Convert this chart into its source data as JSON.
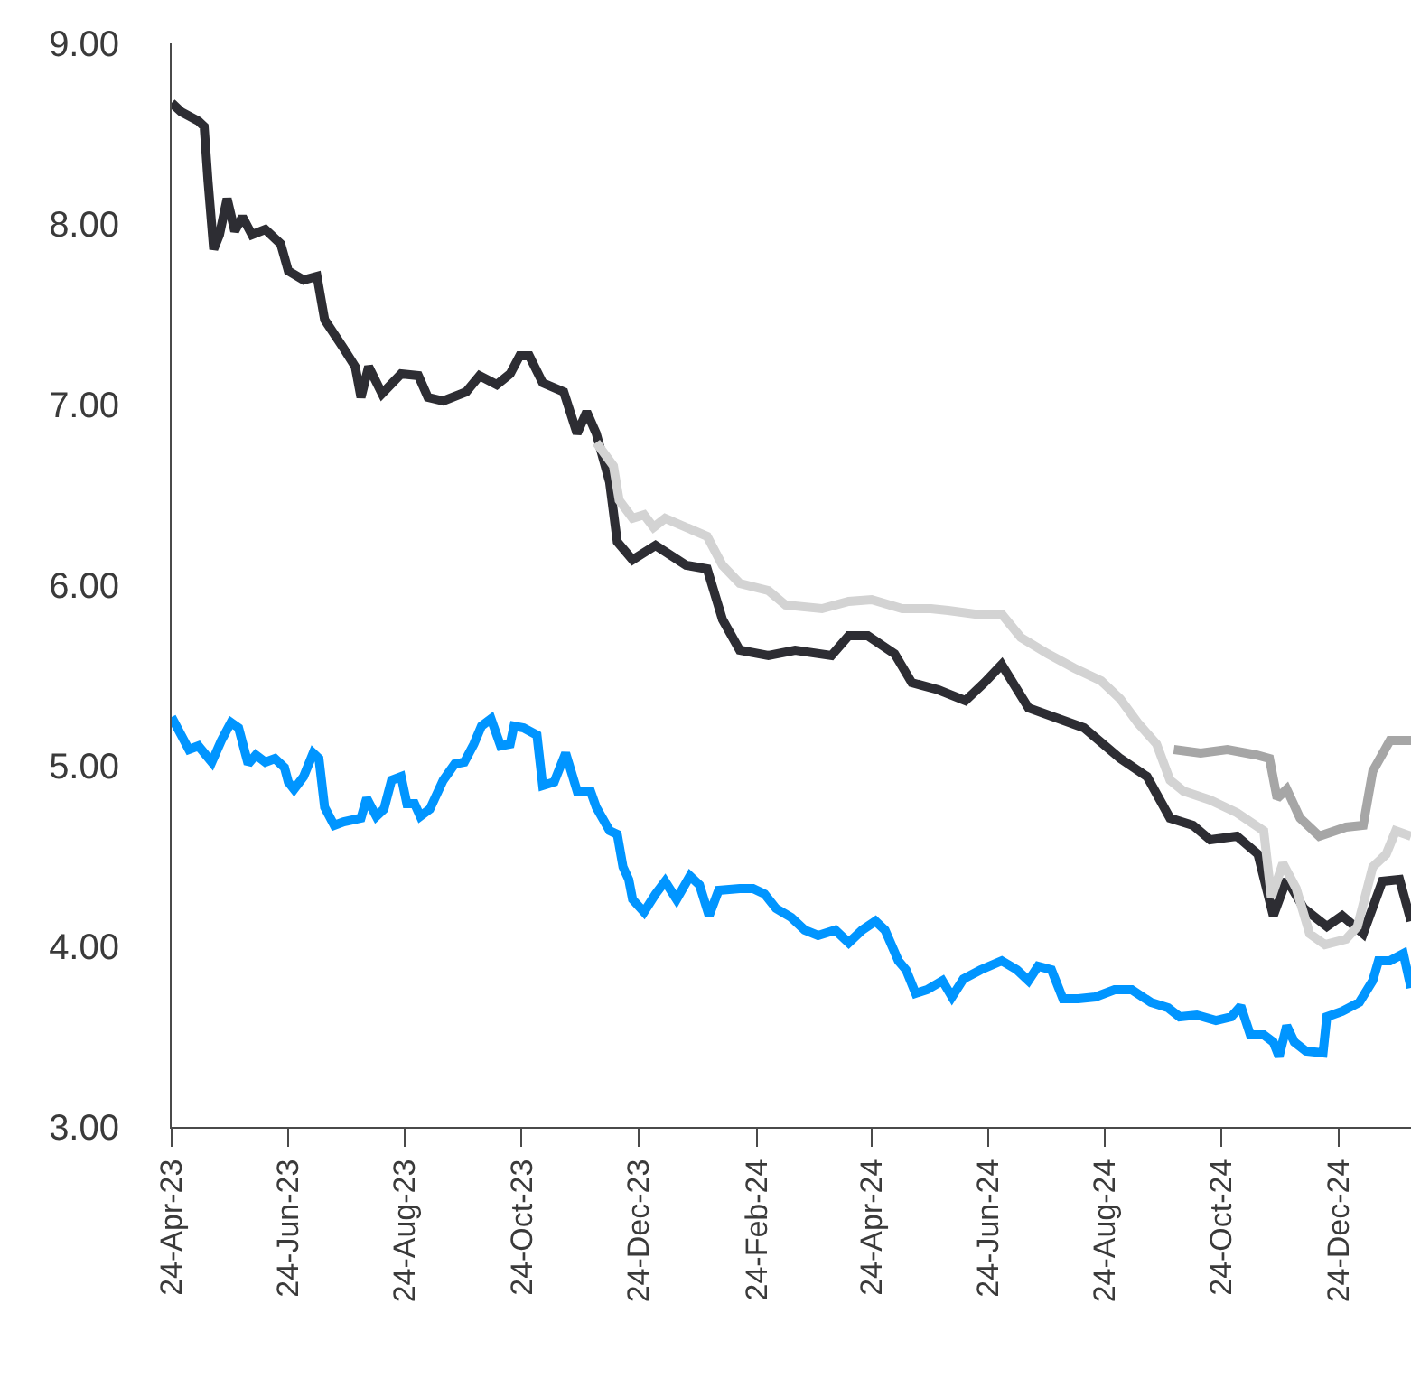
{
  "chart_data": {
    "type": "line",
    "line_style": "solid",
    "marker": "none",
    "xlim": [
      "2023-04-24",
      "2025-01-31"
    ],
    "xticks": [
      {
        "value": "2023-04-24",
        "label": "24-Apr-23"
      },
      {
        "value": "2023-06-24",
        "label": "24-Jun-23"
      },
      {
        "value": "2023-08-24",
        "label": "24-Aug-23"
      },
      {
        "value": "2023-10-24",
        "label": "24-Oct-23"
      },
      {
        "value": "2023-12-24",
        "label": "24-Dec-23"
      },
      {
        "value": "2024-02-24",
        "label": "24-Feb-24"
      },
      {
        "value": "2024-04-24",
        "label": "24-Apr-24"
      },
      {
        "value": "2024-06-24",
        "label": "24-Jun-24"
      },
      {
        "value": "2024-08-24",
        "label": "24-Aug-24"
      },
      {
        "value": "2024-10-24",
        "label": "24-Oct-24"
      },
      {
        "value": "2024-12-24",
        "label": "24-Dec-24"
      }
    ],
    "ylim": [
      3,
      9
    ],
    "yticks": [
      {
        "value": 3,
        "label": "3.00"
      },
      {
        "value": 4,
        "label": "4.00"
      },
      {
        "value": 5,
        "label": "5.00"
      },
      {
        "value": 6,
        "label": "6.00"
      },
      {
        "value": 7,
        "label": "7.00"
      },
      {
        "value": 8,
        "label": "8.00"
      },
      {
        "value": 9,
        "label": "9.00"
      }
    ],
    "series": [
      {
        "color": "#2d2d33",
        "x": [
          "2023-04-24",
          "2023-04-29",
          "2023-05-08",
          "2023-05-11",
          "2023-05-13",
          "2023-05-16",
          "2023-05-19",
          "2023-05-23",
          "2023-05-27",
          "2023-05-31",
          "2023-06-05",
          "2023-06-12",
          "2023-06-20",
          "2023-06-24",
          "2023-07-02",
          "2023-07-09",
          "2023-07-13",
          "2023-07-23",
          "2023-07-29",
          "2023-08-01",
          "2023-08-05",
          "2023-08-12",
          "2023-08-22",
          "2023-08-31",
          "2023-09-05",
          "2023-09-13",
          "2023-09-25",
          "2023-10-02",
          "2023-10-11",
          "2023-10-18",
          "2023-10-23",
          "2023-10-28",
          "2023-11-04",
          "2023-11-15",
          "2023-11-22",
          "2023-11-27",
          "2023-12-02",
          "2023-12-09",
          "2023-12-13",
          "2023-12-21",
          "2024-01-02",
          "2024-01-18",
          "2024-01-29",
          "2024-02-06",
          "2024-02-15",
          "2024-03-01",
          "2024-03-15",
          "2024-04-03",
          "2024-04-12",
          "2024-04-22",
          "2024-05-06",
          "2024-05-15",
          "2024-05-29",
          "2024-06-12",
          "2024-06-22",
          "2024-07-01",
          "2024-07-15",
          "2024-08-13",
          "2024-09-01",
          "2024-09-15",
          "2024-09-27",
          "2024-10-09",
          "2024-10-18",
          "2024-11-01",
          "2024-11-12",
          "2024-11-20",
          "2024-11-27",
          "2024-12-06",
          "2024-12-18",
          "2024-12-26",
          "2025-01-06",
          "2025-01-16",
          "2025-01-25",
          "2025-01-31"
        ],
        "values": [
          8.67,
          8.62,
          8.57,
          8.54,
          8.24,
          7.86,
          7.94,
          8.14,
          7.96,
          8.04,
          7.94,
          7.97,
          7.89,
          7.74,
          7.69,
          7.71,
          7.47,
          7.31,
          7.21,
          7.04,
          7.21,
          7.06,
          7.17,
          7.16,
          7.04,
          7.02,
          7.07,
          7.16,
          7.11,
          7.17,
          7.27,
          7.27,
          7.12,
          7.07,
          6.84,
          6.96,
          6.84,
          6.57,
          6.24,
          6.14,
          6.22,
          6.11,
          6.09,
          5.81,
          5.64,
          5.61,
          5.64,
          5.61,
          5.72,
          5.72,
          5.62,
          5.46,
          5.42,
          5.36,
          5.46,
          5.56,
          5.32,
          5.21,
          5.04,
          4.94,
          4.71,
          4.67,
          4.59,
          4.61,
          4.51,
          4.17,
          4.37,
          4.21,
          4.11,
          4.17,
          4.07,
          4.36,
          4.37,
          4.14
        ]
      },
      {
        "color": "#d3d3d3",
        "x": [
          "2023-12-02",
          "2023-12-11",
          "2023-12-14",
          "2023-12-21",
          "2023-12-27",
          "2024-01-01",
          "2024-01-07",
          "2024-01-18",
          "2024-01-29",
          "2024-02-06",
          "2024-02-15",
          "2024-03-01",
          "2024-03-10",
          "2024-03-29",
          "2024-04-12",
          "2024-04-24",
          "2024-05-10",
          "2024-05-25",
          "2024-06-03",
          "2024-06-17",
          "2024-07-01",
          "2024-07-11",
          "2024-07-25",
          "2024-08-08",
          "2024-08-22",
          "2024-09-01",
          "2024-09-10",
          "2024-09-20",
          "2024-09-27",
          "2024-10-04",
          "2024-10-18",
          "2024-11-01",
          "2024-11-15",
          "2024-11-19",
          "2024-11-25",
          "2024-12-02",
          "2024-12-09",
          "2024-12-17",
          "2024-12-28",
          "2025-01-03",
          "2025-01-11",
          "2025-01-18",
          "2025-01-23",
          "2025-01-31"
        ],
        "values": [
          6.79,
          6.66,
          6.47,
          6.37,
          6.39,
          6.32,
          6.37,
          6.32,
          6.27,
          6.11,
          6.01,
          5.97,
          5.89,
          5.87,
          5.91,
          5.92,
          5.87,
          5.87,
          5.86,
          5.84,
          5.84,
          5.71,
          5.62,
          5.54,
          5.47,
          5.37,
          5.24,
          5.12,
          4.92,
          4.86,
          4.81,
          4.74,
          4.64,
          4.27,
          4.46,
          4.32,
          4.07,
          4.01,
          4.04,
          4.11,
          4.44,
          4.51,
          4.64,
          4.61
        ]
      },
      {
        "color": "#a6a6a6",
        "x": [
          "2024-09-29",
          "2024-10-13",
          "2024-10-27",
          "2024-11-11",
          "2024-11-18",
          "2024-11-22",
          "2024-11-27",
          "2024-12-04",
          "2024-12-14",
          "2024-12-28",
          "2025-01-06",
          "2025-01-11",
          "2025-01-20",
          "2025-01-31"
        ],
        "values": [
          5.09,
          5.07,
          5.09,
          5.06,
          5.04,
          4.82,
          4.87,
          4.71,
          4.61,
          4.66,
          4.67,
          4.97,
          5.14,
          5.14
        ]
      },
      {
        "color": "#0095ff",
        "x": [
          "2023-04-24",
          "2023-04-29",
          "2023-05-03",
          "2023-05-08",
          "2023-05-15",
          "2023-05-20",
          "2023-05-25",
          "2023-05-29",
          "2023-06-03",
          "2023-06-07",
          "2023-06-12",
          "2023-06-17",
          "2023-06-22",
          "2023-06-24",
          "2023-06-27",
          "2023-07-02",
          "2023-07-07",
          "2023-07-10",
          "2023-07-13",
          "2023-07-18",
          "2023-07-23",
          "2023-08-01",
          "2023-08-04",
          "2023-08-09",
          "2023-08-13",
          "2023-08-17",
          "2023-08-22",
          "2023-08-25",
          "2023-08-29",
          "2023-09-01",
          "2023-09-06",
          "2023-09-13",
          "2023-09-19",
          "2023-09-24",
          "2023-09-29",
          "2023-10-03",
          "2023-10-08",
          "2023-10-13",
          "2023-10-18",
          "2023-10-20",
          "2023-10-25",
          "2023-11-01",
          "2023-11-04",
          "2023-11-10",
          "2023-11-16",
          "2023-11-22",
          "2023-11-29",
          "2023-12-02",
          "2023-12-09",
          "2023-12-13",
          "2023-12-16",
          "2023-12-19",
          "2023-12-21",
          "2023-12-27",
          "2024-01-02",
          "2024-01-07",
          "2024-01-13",
          "2024-01-20",
          "2024-01-25",
          "2024-01-30",
          "2024-02-04",
          "2024-02-15",
          "2024-02-22",
          "2024-02-28",
          "2024-03-05",
          "2024-03-13",
          "2024-03-20",
          "2024-03-27",
          "2024-04-05",
          "2024-04-12",
          "2024-04-19",
          "2024-04-26",
          "2024-05-01",
          "2024-05-08",
          "2024-05-12",
          "2024-05-17",
          "2024-05-23",
          "2024-05-31",
          "2024-06-05",
          "2024-06-11",
          "2024-06-20",
          "2024-07-01",
          "2024-07-09",
          "2024-07-15",
          "2024-07-20",
          "2024-07-27",
          "2024-08-02",
          "2024-08-10",
          "2024-08-19",
          "2024-08-29",
          "2024-09-07",
          "2024-09-17",
          "2024-09-26",
          "2024-10-02",
          "2024-10-11",
          "2024-10-21",
          "2024-10-29",
          "2024-11-03",
          "2024-11-08",
          "2024-11-15",
          "2024-11-20",
          "2024-11-23",
          "2024-11-27",
          "2024-12-01",
          "2024-12-07",
          "2024-12-16",
          "2024-12-18",
          "2024-12-26",
          "2025-01-04",
          "2025-01-11",
          "2025-01-14",
          "2025-01-20",
          "2025-01-27",
          "2025-01-31"
        ],
        "values": [
          5.27,
          5.17,
          5.09,
          5.11,
          5.02,
          5.14,
          5.24,
          5.21,
          5.01,
          5.06,
          5.02,
          5.04,
          4.99,
          4.91,
          4.87,
          4.94,
          5.07,
          5.04,
          4.77,
          4.67,
          4.69,
          4.71,
          4.82,
          4.72,
          4.76,
          4.92,
          4.94,
          4.79,
          4.79,
          4.72,
          4.76,
          4.92,
          5.01,
          5.02,
          5.12,
          5.22,
          5.26,
          5.11,
          5.12,
          5.22,
          5.21,
          5.17,
          4.89,
          4.91,
          5.07,
          4.86,
          4.86,
          4.77,
          4.64,
          4.62,
          4.44,
          4.37,
          4.26,
          4.19,
          4.29,
          4.36,
          4.26,
          4.39,
          4.34,
          4.17,
          4.31,
          4.32,
          4.32,
          4.29,
          4.21,
          4.16,
          4.09,
          4.06,
          4.09,
          4.02,
          4.09,
          4.14,
          4.09,
          3.92,
          3.87,
          3.74,
          3.76,
          3.81,
          3.72,
          3.82,
          3.87,
          3.92,
          3.87,
          3.81,
          3.89,
          3.87,
          3.71,
          3.71,
          3.72,
          3.76,
          3.76,
          3.69,
          3.66,
          3.61,
          3.62,
          3.59,
          3.61,
          3.67,
          3.51,
          3.51,
          3.47,
          3.39,
          3.56,
          3.47,
          3.42,
          3.41,
          3.61,
          3.64,
          3.69,
          3.81,
          3.92,
          3.92,
          3.96,
          3.77
        ]
      }
    ]
  }
}
